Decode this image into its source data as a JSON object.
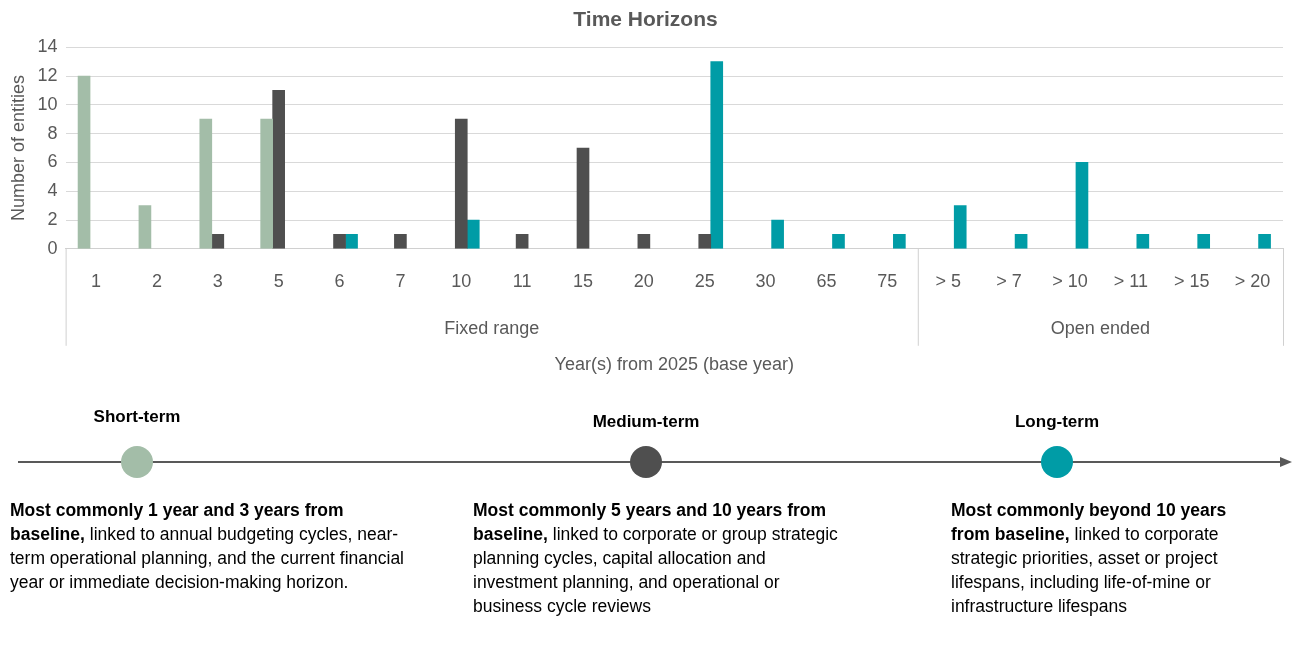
{
  "chart_data": {
    "type": "bar",
    "title": "Time Horizons",
    "xlabel": "Year(s) from 2025 (base year)",
    "ylabel": "Number of entities",
    "categories": [
      "1",
      "2",
      "3",
      "5",
      "6",
      "7",
      "10",
      "11",
      "15",
      "20",
      "25",
      "30",
      "65",
      "75",
      "> 5",
      "> 7",
      "> 10",
      "> 11",
      "> 15",
      "> 20"
    ],
    "series": [
      {
        "color": "#a3bda8",
        "values": [
          12,
          3,
          9,
          9,
          null,
          null,
          null,
          null,
          null,
          null,
          null,
          null,
          null,
          null,
          null,
          null,
          null,
          null,
          null,
          null
        ]
      },
      {
        "color": "#4f4f4f",
        "values": [
          null,
          null,
          1,
          11,
          1,
          1,
          9,
          1,
          7,
          1,
          1,
          null,
          null,
          null,
          null,
          null,
          null,
          null,
          null,
          null
        ]
      },
      {
        "color": "#009ca6",
        "values": [
          null,
          null,
          null,
          null,
          1,
          null,
          2,
          null,
          null,
          null,
          13,
          2,
          1,
          1,
          3,
          1,
          6,
          1,
          1,
          1
        ]
      }
    ],
    "ylim": [
      0,
      14
    ],
    "yticks": [
      0,
      2,
      4,
      6,
      8,
      10,
      12,
      14
    ],
    "grid": "y",
    "annotations": [
      "Fixed range",
      "Open ended",
      "Short-term",
      "Medium-term",
      "Long-term",
      "Most commonly 1 year and 3 years from baseline,",
      "linked to annual budgeting cycles, near-term operational planning, and the current financial year or immediate decision-making horizon.",
      "Most commonly 5 years and 10 years from baseline,",
      "linked to corporate or group strategic planning cycles, capital allocation and investment planning, and operational or business cycle reviews",
      "Most commonly beyond 10 years from baseline,",
      "linked to corporate strategic priorities, asset or project lifespans, including life-of-mine or infrastructure lifespans"
    ]
  }
}
